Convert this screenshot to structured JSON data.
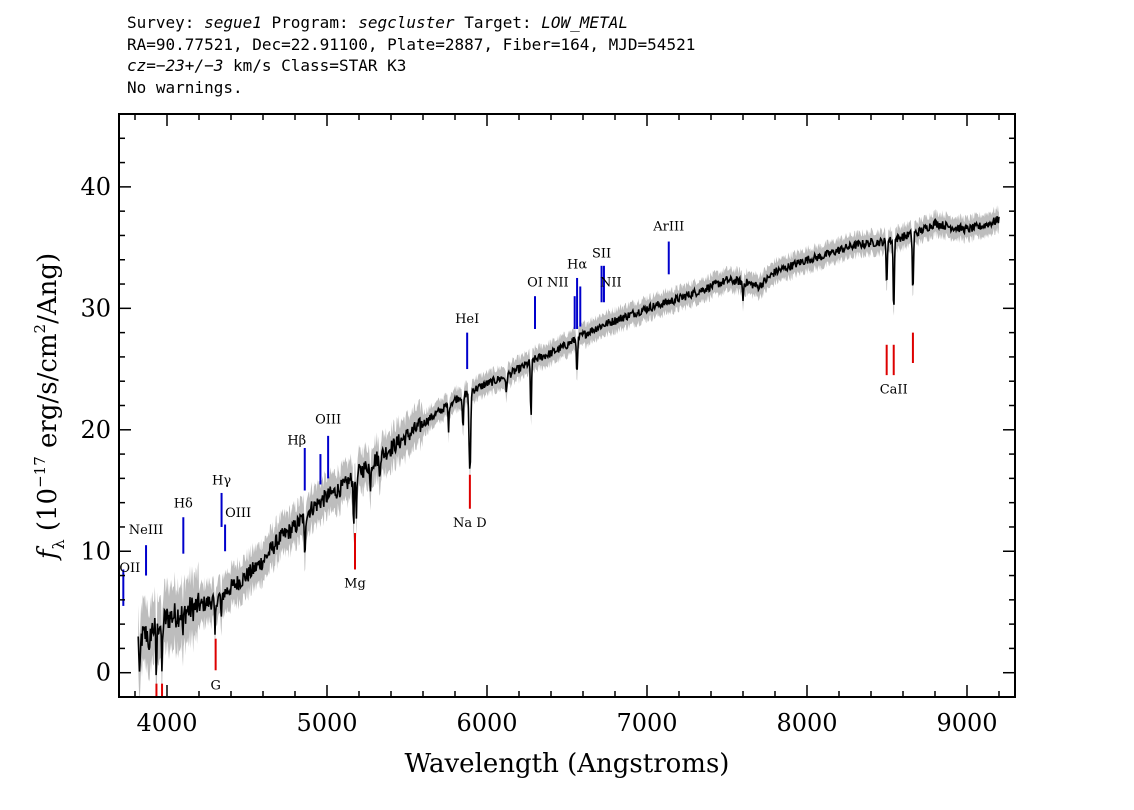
{
  "header": {
    "survey_key": "Survey:",
    "survey": "segue1",
    "program_key": "Program:",
    "program": "segcluster",
    "target_key": "Target:",
    "target": "LOW_METAL",
    "line2": "RA=90.77521, Dec=22.91100, Plate=2887, Fiber=164, MJD=54521",
    "cz_key": "cz=",
    "cz_value": "−23+/−3",
    "cz_rest": " km/s Class=STAR K3",
    "line4": "No warnings."
  },
  "chart_data": {
    "type": "line",
    "xlabel": "Wavelength (Angstroms)",
    "ylabel": "f_λ (10^-17 erg/s/cm^2/Ang)",
    "ylabel_parts": {
      "f": "f",
      "sub": "λ",
      "a": " (10",
      "exp1": "−17",
      "b": " erg/s/cm",
      "exp2": "2",
      "c": "/Ang)"
    },
    "xlim": [
      3700,
      9300
    ],
    "ylim": [
      -2,
      46
    ],
    "xticks": [
      4000,
      5000,
      6000,
      7000,
      8000,
      9000
    ],
    "yticks": [
      0,
      10,
      20,
      30,
      40
    ],
    "x_minor_step": 200,
    "y_minor_step": 2,
    "colors": {
      "spectrum": "#000000",
      "error_band": "#bdbdbd",
      "emission": "#0000cc",
      "absorption": "#dd0000"
    },
    "spectrum_continuum": [
      [
        3800,
        2.5
      ],
      [
        3900,
        3.5
      ],
      [
        4000,
        4.5
      ],
      [
        4100,
        5.0
      ],
      [
        4200,
        5.5
      ],
      [
        4300,
        6.0
      ],
      [
        4400,
        7.0
      ],
      [
        4500,
        8.0
      ],
      [
        4600,
        9.2
      ],
      [
        4700,
        11.0
      ],
      [
        4800,
        12.0
      ],
      [
        4900,
        13.5
      ],
      [
        5000,
        14.5
      ],
      [
        5100,
        15.3
      ],
      [
        5200,
        16.5
      ],
      [
        5300,
        17.5
      ],
      [
        5400,
        18.5
      ],
      [
        5500,
        19.5
      ],
      [
        5600,
        20.5
      ],
      [
        5700,
        21.5
      ],
      [
        5800,
        22.5
      ],
      [
        5900,
        23.2
      ],
      [
        6000,
        23.8
      ],
      [
        6100,
        24.3
      ],
      [
        6200,
        25.0
      ],
      [
        6300,
        25.8
      ],
      [
        6400,
        26.3
      ],
      [
        6500,
        27.0
      ],
      [
        6600,
        27.8
      ],
      [
        6700,
        28.5
      ],
      [
        6800,
        29.0
      ],
      [
        6900,
        29.5
      ],
      [
        7000,
        30.0
      ],
      [
        7100,
        30.4
      ],
      [
        7200,
        30.8
      ],
      [
        7300,
        31.3
      ],
      [
        7400,
        31.8
      ],
      [
        7500,
        32.3
      ],
      [
        7600,
        32.2
      ],
      [
        7700,
        31.8
      ],
      [
        7800,
        33.0
      ],
      [
        7900,
        33.5
      ],
      [
        8000,
        34.0
      ],
      [
        8100,
        34.3
      ],
      [
        8200,
        34.8
      ],
      [
        8300,
        35.2
      ],
      [
        8400,
        35.4
      ],
      [
        8500,
        35.5
      ],
      [
        8600,
        35.9
      ],
      [
        8700,
        36.3
      ],
      [
        8800,
        37.0
      ],
      [
        8900,
        36.7
      ],
      [
        9000,
        36.5
      ],
      [
        9100,
        36.8
      ],
      [
        9200,
        37.3
      ]
    ],
    "absorption_features": [
      {
        "x": 3830,
        "depth": 3.5
      },
      {
        "x": 3890,
        "depth": 2.5
      },
      {
        "x": 3933,
        "depth": 4.0
      },
      {
        "x": 3968,
        "depth": 4.0
      },
      {
        "x": 4100,
        "depth": 2.0
      },
      {
        "x": 4300,
        "depth": 3.0
      },
      {
        "x": 4340,
        "depth": 2.0
      },
      {
        "x": 4861,
        "depth": 3.5
      },
      {
        "x": 5167,
        "depth": 3.5
      },
      {
        "x": 5184,
        "depth": 3.0
      },
      {
        "x": 5270,
        "depth": 2.0
      },
      {
        "x": 5328,
        "depth": 1.5
      },
      {
        "x": 5760,
        "depth": 2.0
      },
      {
        "x": 5850,
        "depth": 3.0
      },
      {
        "x": 5890,
        "depth": 5.0
      },
      {
        "x": 5896,
        "depth": 4.5
      },
      {
        "x": 6120,
        "depth": 1.5
      },
      {
        "x": 6275,
        "depth": 4.5
      },
      {
        "x": 6563,
        "depth": 3.0
      },
      {
        "x": 7600,
        "depth": 1.5
      },
      {
        "x": 8498,
        "depth": 3.5
      },
      {
        "x": 8542,
        "depth": 6.0
      },
      {
        "x": 8662,
        "depth": 5.0
      }
    ],
    "emission_lines": [
      {
        "x": 3727,
        "label": "OII",
        "y0": 5.5,
        "y1": 8.5,
        "ly": 8.3,
        "anchor": "start",
        "dx": -4
      },
      {
        "x": 3869,
        "label": "NeIII",
        "y0": 8.0,
        "y1": 10.5,
        "ly": 11.4,
        "anchor": "middle",
        "dx": 0
      },
      {
        "x": 4102,
        "label": "Hδ",
        "y0": 9.8,
        "y1": 12.8,
        "ly": 13.6,
        "anchor": "middle",
        "dx": 0
      },
      {
        "x": 4341,
        "label": "Hγ",
        "y0": 12.0,
        "y1": 14.8,
        "ly": 15.5,
        "anchor": "middle",
        "dx": 0
      },
      {
        "x": 4363,
        "label": "OIII",
        "y0": 10.0,
        "y1": 12.2,
        "ly": 12.8,
        "anchor": "start",
        "dx": 0
      },
      {
        "x": 4861,
        "label": "Hβ",
        "y0": 15.0,
        "y1": 18.5,
        "ly": 18.8,
        "anchor": "middle",
        "dx": -8
      },
      {
        "x": 4959,
        "label": "",
        "y0": 15.5,
        "y1": 18.0,
        "ly": 0,
        "anchor": "middle",
        "dx": 0
      },
      {
        "x": 5007,
        "label": "OIII",
        "y0": 16.0,
        "y1": 19.5,
        "ly": 20.5,
        "anchor": "middle",
        "dx": 0
      },
      {
        "x": 5876,
        "label": "HeI",
        "y0": 25.0,
        "y1": 28.0,
        "ly": 28.8,
        "anchor": "middle",
        "dx": 0
      },
      {
        "x": 6300,
        "label": "OI",
        "y0": 28.3,
        "y1": 31.0,
        "ly": 31.8,
        "anchor": "middle",
        "dx": 0
      },
      {
        "x": 6548,
        "label": "NII",
        "y0": 28.3,
        "y1": 31.0,
        "ly": 31.8,
        "anchor": "end",
        "dx": -6
      },
      {
        "x": 6563,
        "label": "Hα",
        "y0": 28.3,
        "y1": 32.5,
        "ly": 33.3,
        "anchor": "middle",
        "dx": 0
      },
      {
        "x": 6583,
        "label": "",
        "y0": 28.5,
        "y1": 31.8,
        "ly": 0,
        "anchor": "middle",
        "dx": 0
      },
      {
        "x": 6716,
        "label": "SII",
        "y0": 30.5,
        "y1": 33.5,
        "ly": 34.2,
        "anchor": "middle",
        "dx": 0
      },
      {
        "x": 6731,
        "label": "NII",
        "y0": 30.5,
        "y1": 33.5,
        "ly": 31.8,
        "anchor": "start",
        "dx": -4
      },
      {
        "x": 7136,
        "label": "ArIII",
        "y0": 32.8,
        "y1": 35.5,
        "ly": 36.4,
        "anchor": "middle",
        "dx": 0
      }
    ],
    "absorption_lines": [
      {
        "x": 3934,
        "label": "",
        "y0": -2.0,
        "y1": -0.9,
        "ly": 0
      },
      {
        "x": 3969,
        "label": "",
        "y0": -2.0,
        "y1": -0.9,
        "ly": 0
      },
      {
        "x": 4304,
        "label": "G",
        "y0": 0.2,
        "y1": 2.8,
        "ly": -1.4
      },
      {
        "x": 5175,
        "label": "Mg",
        "y0": 8.5,
        "y1": 11.5,
        "ly": 7.0
      },
      {
        "x": 5893,
        "label": "Na D",
        "y0": 13.5,
        "y1": 16.3,
        "ly": 12.0
      },
      {
        "x": 8498,
        "label": "",
        "y0": 24.5,
        "y1": 27.0,
        "ly": 0
      },
      {
        "x": 8542,
        "label": "CaII",
        "y0": 24.5,
        "y1": 27.0,
        "ly": 23.0
      },
      {
        "x": 8662,
        "label": "",
        "y0": 25.5,
        "y1": 28.0,
        "ly": 0
      }
    ]
  }
}
